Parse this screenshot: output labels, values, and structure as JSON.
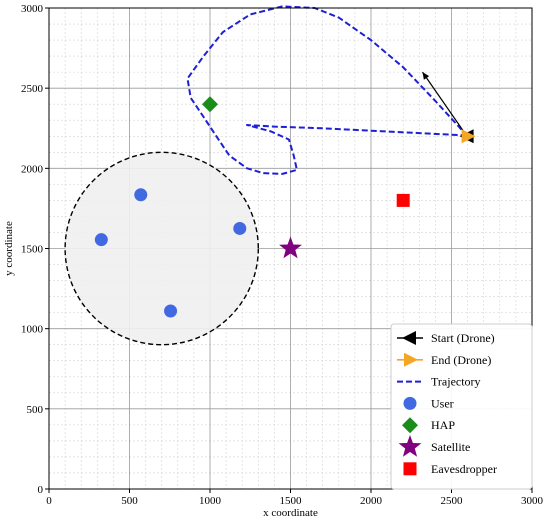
{
  "chart_data": {
    "type": "scatter",
    "xlabel": "x coordinate",
    "ylabel": "y coordinate",
    "xlim": [
      0,
      3000
    ],
    "ylim": [
      0,
      3000
    ],
    "xticks": [
      0,
      500,
      1000,
      1500,
      2000,
      2500,
      3000
    ],
    "yticks": [
      0,
      500,
      1000,
      1500,
      2000,
      2500,
      3000
    ],
    "xtick_labels": [
      "0",
      "500",
      "1000",
      "1500",
      "2000",
      "2500",
      "3000"
    ],
    "ytick_labels": [
      "0",
      "500",
      "1000",
      "1500",
      "2000",
      "2500",
      "3000"
    ],
    "grid": true,
    "minor_grid": true,
    "legend_placement": "lower-right",
    "coverage_circle": {
      "center": [
        700,
        1500
      ],
      "radius": 600,
      "fill": "#f0f0f0",
      "stroke": "#000000",
      "style": "dashed"
    },
    "arrow": {
      "from": [
        2610,
        2180
      ],
      "to": [
        2320,
        2600
      ],
      "color": "#000000"
    },
    "series": [
      {
        "name": "Start (Drone)",
        "kind": "start",
        "marker": "triangle-left",
        "color": "#000000",
        "points": [
          [
            2600,
            2200
          ]
        ]
      },
      {
        "name": "End (Drone)",
        "kind": "end",
        "marker": "triangle-right",
        "color": "#f5a623",
        "points": [
          [
            2600,
            2200
          ]
        ]
      },
      {
        "name": "Trajectory",
        "kind": "trajectory",
        "marker": "dashed-line",
        "color": "#1f1fd6",
        "points": [
          [
            2600,
            2200
          ],
          [
            2400,
            2420
          ],
          [
            2200,
            2630
          ],
          [
            2000,
            2800
          ],
          [
            1800,
            2940
          ],
          [
            1650,
            3000
          ],
          [
            1450,
            3010
          ],
          [
            1250,
            2960
          ],
          [
            1080,
            2850
          ],
          [
            960,
            2700
          ],
          [
            860,
            2560
          ],
          [
            880,
            2440
          ],
          [
            960,
            2320
          ],
          [
            1040,
            2200
          ],
          [
            1120,
            2080
          ],
          [
            1230,
            2000
          ],
          [
            1330,
            1970
          ],
          [
            1450,
            1965
          ],
          [
            1540,
            1990
          ],
          [
            1520,
            2080
          ],
          [
            1490,
            2180
          ],
          [
            1380,
            2230
          ],
          [
            1230,
            2270
          ],
          [
            1400,
            2260
          ],
          [
            1700,
            2250
          ],
          [
            2000,
            2235
          ],
          [
            2300,
            2220
          ],
          [
            2600,
            2205
          ]
        ]
      },
      {
        "name": "User",
        "kind": "user",
        "marker": "circle",
        "color": "#4169e1",
        "points": [
          [
            570,
            1835
          ],
          [
            325,
            1555
          ],
          [
            1185,
            1625
          ],
          [
            755,
            1110
          ]
        ]
      },
      {
        "name": "HAP",
        "kind": "hap",
        "marker": "diamond",
        "color": "#1a8c1a",
        "points": [
          [
            1000,
            2400
          ]
        ]
      },
      {
        "name": "Satellite",
        "kind": "satellite",
        "marker": "star",
        "color": "#800080",
        "points": [
          [
            1500,
            1500
          ]
        ]
      },
      {
        "name": "Eavesdropper",
        "kind": "eavesdropper",
        "marker": "square",
        "color": "#ff0000",
        "points": [
          [
            2200,
            1800
          ]
        ]
      }
    ]
  }
}
